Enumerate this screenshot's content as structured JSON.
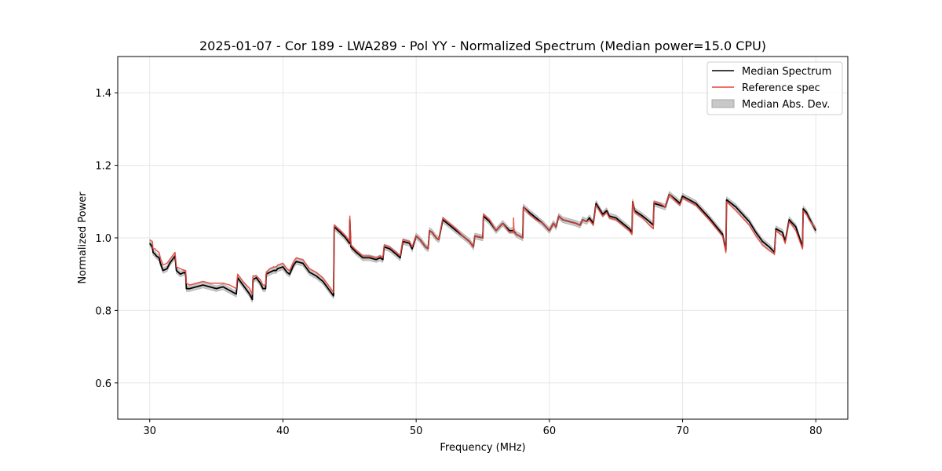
{
  "chart_data": {
    "type": "line",
    "title": "2025-01-07 - Cor 189 - LWA289 - Pol YY - Normalized Spectrum (Median power=15.0 CPU)",
    "xlabel": "Frequency (MHz)",
    "ylabel": "Normalized Power",
    "xlim": [
      27.6,
      82.4
    ],
    "ylim": [
      0.5,
      1.5
    ],
    "xticks": [
      30,
      40,
      50,
      60,
      70,
      80
    ],
    "yticks": [
      0.6,
      0.8,
      1.0,
      1.2,
      1.4
    ],
    "xtick_labels": [
      "30",
      "40",
      "50",
      "60",
      "70",
      "80"
    ],
    "ytick_labels": [
      "0.6",
      "0.8",
      "1.0",
      "1.2",
      "1.4"
    ],
    "grid": true,
    "legend_position": "top-right",
    "legend": [
      "Median Spectrum",
      "Reference spec",
      "Median Abs. Dev."
    ],
    "colors": {
      "median": "#000000",
      "reference": "#e8443a",
      "mad_fill": "#c8c8c8",
      "mad_edge": "#a8a8a8",
      "grid": "#e6e6e6"
    },
    "mad_halfwidth": 0.008,
    "series": [
      {
        "name": "Median Spectrum",
        "x": [
          30.0,
          30.2,
          30.25,
          30.4,
          30.5,
          30.7,
          30.8,
          31.0,
          31.3,
          31.5,
          31.7,
          31.9,
          32.0,
          32.3,
          32.6,
          32.7,
          32.75,
          33.0,
          33.5,
          34.0,
          34.5,
          35.0,
          35.5,
          36.0,
          36.5,
          36.6,
          37.0,
          37.5,
          37.7,
          37.75,
          38.0,
          38.3,
          38.5,
          38.7,
          38.75,
          39.0,
          39.3,
          39.5,
          39.6,
          40.0,
          40.3,
          40.5,
          40.8,
          41.0,
          41.5,
          42.0,
          42.5,
          43.0,
          43.5,
          43.8,
          43.85,
          44.3,
          44.7,
          45.0,
          45.02,
          45.1,
          45.5,
          46.0,
          46.5,
          47.0,
          47.3,
          47.5,
          47.6,
          48.0,
          48.5,
          48.8,
          49.0,
          49.5,
          49.7,
          50.0,
          50.3,
          50.5,
          50.7,
          50.9,
          51.0,
          51.2,
          51.5,
          51.7,
          52.0,
          52.5,
          53.0,
          53.5,
          54.0,
          54.3,
          54.4,
          55.0,
          55.05,
          55.5,
          56.0,
          56.5,
          57.0,
          57.3,
          57.5,
          58.0,
          58.05,
          58.5,
          59.0,
          59.5,
          60.0,
          60.3,
          60.5,
          60.7,
          61.0,
          61.5,
          62.0,
          62.3,
          62.5,
          62.8,
          63.0,
          63.3,
          63.5,
          64.0,
          64.3,
          64.5,
          65.0,
          65.5,
          66.0,
          66.2,
          66.25,
          66.4,
          67.0,
          67.5,
          67.8,
          67.85,
          68.3,
          68.7,
          69.0,
          69.5,
          69.8,
          70.0,
          71.0,
          72.0,
          73.0,
          73.25,
          73.3,
          74.0,
          75.0,
          75.5,
          76.0,
          76.5,
          76.9,
          77.0,
          77.5,
          77.7,
          78.0,
          78.5,
          79.0,
          79.05,
          79.3,
          79.5,
          80.0
        ],
        "y": [
          0.985,
          0.975,
          0.96,
          0.955,
          0.95,
          0.945,
          0.93,
          0.91,
          0.915,
          0.93,
          0.94,
          0.95,
          0.91,
          0.9,
          0.905,
          0.9,
          0.86,
          0.86,
          0.865,
          0.87,
          0.865,
          0.86,
          0.865,
          0.855,
          0.845,
          0.89,
          0.87,
          0.845,
          0.83,
          0.885,
          0.89,
          0.875,
          0.86,
          0.86,
          0.9,
          0.905,
          0.91,
          0.91,
          0.915,
          0.92,
          0.905,
          0.9,
          0.925,
          0.935,
          0.93,
          0.905,
          0.895,
          0.88,
          0.855,
          0.84,
          1.03,
          1.015,
          1.0,
          0.985,
          1.05,
          0.975,
          0.96,
          0.945,
          0.945,
          0.94,
          0.945,
          0.94,
          0.975,
          0.97,
          0.955,
          0.945,
          0.99,
          0.985,
          0.97,
          1.005,
          0.995,
          0.985,
          0.975,
          0.97,
          1.02,
          1.015,
          1.0,
          0.995,
          1.05,
          1.035,
          1.02,
          1.005,
          0.99,
          0.975,
          1.005,
          1.0,
          1.06,
          1.045,
          1.02,
          1.04,
          1.02,
          1.02,
          1.01,
          1.0,
          1.085,
          1.07,
          1.055,
          1.04,
          1.02,
          1.04,
          1.03,
          1.06,
          1.05,
          1.045,
          1.04,
          1.035,
          1.05,
          1.045,
          1.055,
          1.04,
          1.095,
          1.065,
          1.075,
          1.06,
          1.055,
          1.04,
          1.025,
          1.015,
          1.1,
          1.075,
          1.06,
          1.045,
          1.035,
          1.095,
          1.09,
          1.085,
          1.12,
          1.105,
          1.095,
          1.115,
          1.095,
          1.055,
          1.01,
          0.965,
          1.105,
          1.085,
          1.045,
          1.015,
          0.99,
          0.975,
          0.96,
          1.025,
          1.015,
          0.99,
          1.05,
          1.03,
          0.975,
          1.08,
          1.07,
          1.055,
          1.02
        ]
      },
      {
        "name": "Reference spec",
        "x": [
          30.0,
          30.2,
          30.25,
          30.4,
          30.5,
          30.7,
          30.8,
          31.0,
          31.3,
          31.5,
          31.7,
          31.9,
          32.0,
          32.3,
          32.6,
          32.7,
          32.75,
          33.0,
          33.5,
          34.0,
          34.5,
          35.0,
          35.5,
          36.0,
          36.5,
          36.6,
          37.0,
          37.5,
          37.7,
          37.75,
          38.0,
          38.3,
          38.5,
          38.7,
          38.75,
          39.0,
          39.3,
          39.5,
          39.6,
          40.0,
          40.3,
          40.5,
          40.8,
          41.0,
          41.5,
          42.0,
          42.5,
          43.0,
          43.5,
          43.8,
          43.85,
          44.3,
          44.7,
          45.0,
          45.02,
          45.1,
          45.5,
          46.0,
          46.5,
          47.0,
          47.3,
          47.5,
          47.6,
          48.0,
          48.5,
          48.8,
          49.0,
          49.5,
          49.7,
          50.0,
          50.3,
          50.5,
          50.7,
          50.9,
          51.0,
          51.2,
          51.5,
          51.7,
          52.0,
          52.5,
          53.0,
          53.5,
          54.0,
          54.3,
          54.4,
          55.0,
          55.05,
          55.5,
          56.0,
          56.5,
          57.0,
          57.3,
          57.31,
          57.35,
          57.5,
          58.0,
          58.05,
          58.5,
          59.0,
          59.5,
          60.0,
          60.3,
          60.5,
          60.7,
          61.0,
          61.5,
          62.0,
          62.3,
          62.5,
          62.8,
          63.0,
          63.3,
          63.5,
          64.0,
          64.3,
          64.5,
          65.0,
          65.5,
          66.0,
          66.2,
          66.25,
          66.4,
          67.0,
          67.5,
          67.8,
          67.85,
          68.3,
          68.7,
          69.0,
          69.5,
          69.8,
          70.0,
          71.0,
          72.0,
          73.0,
          73.25,
          73.3,
          74.0,
          75.0,
          75.5,
          76.0,
          76.5,
          76.9,
          77.0,
          77.5,
          77.7,
          78.0,
          78.5,
          79.0,
          79.05,
          79.3,
          79.5,
          80.0
        ],
        "y": [
          0.995,
          0.99,
          0.97,
          0.97,
          0.965,
          0.96,
          0.945,
          0.925,
          0.93,
          0.94,
          0.95,
          0.96,
          0.92,
          0.915,
          0.91,
          0.91,
          0.875,
          0.87,
          0.875,
          0.88,
          0.875,
          0.875,
          0.875,
          0.87,
          0.86,
          0.9,
          0.88,
          0.86,
          0.845,
          0.895,
          0.895,
          0.885,
          0.87,
          0.87,
          0.905,
          0.915,
          0.92,
          0.92,
          0.925,
          0.93,
          0.915,
          0.91,
          0.935,
          0.945,
          0.94,
          0.915,
          0.905,
          0.89,
          0.865,
          0.85,
          1.035,
          1.02,
          1.005,
          0.99,
          1.06,
          0.98,
          0.965,
          0.95,
          0.95,
          0.945,
          0.95,
          0.945,
          0.98,
          0.975,
          0.96,
          0.95,
          0.995,
          0.99,
          0.975,
          1.005,
          0.995,
          0.985,
          0.975,
          0.97,
          1.02,
          1.015,
          1.0,
          0.995,
          1.055,
          1.04,
          1.025,
          1.005,
          0.99,
          0.975,
          1.005,
          1.0,
          1.065,
          1.05,
          1.02,
          1.04,
          1.015,
          1.015,
          1.055,
          1.015,
          1.01,
          1.0,
          1.085,
          1.065,
          1.05,
          1.04,
          1.02,
          1.04,
          1.03,
          1.06,
          1.05,
          1.045,
          1.04,
          1.035,
          1.05,
          1.045,
          1.05,
          1.035,
          1.09,
          1.06,
          1.07,
          1.055,
          1.05,
          1.035,
          1.02,
          1.01,
          1.1,
          1.07,
          1.055,
          1.035,
          1.025,
          1.1,
          1.095,
          1.085,
          1.12,
          1.1,
          1.09,
          1.11,
          1.09,
          1.05,
          1.005,
          0.96,
          1.1,
          1.075,
          1.035,
          1.005,
          0.98,
          0.965,
          0.955,
          1.02,
          1.005,
          0.985,
          1.045,
          1.02,
          0.97,
          1.075,
          1.065,
          1.05,
          1.025
        ]
      }
    ]
  }
}
